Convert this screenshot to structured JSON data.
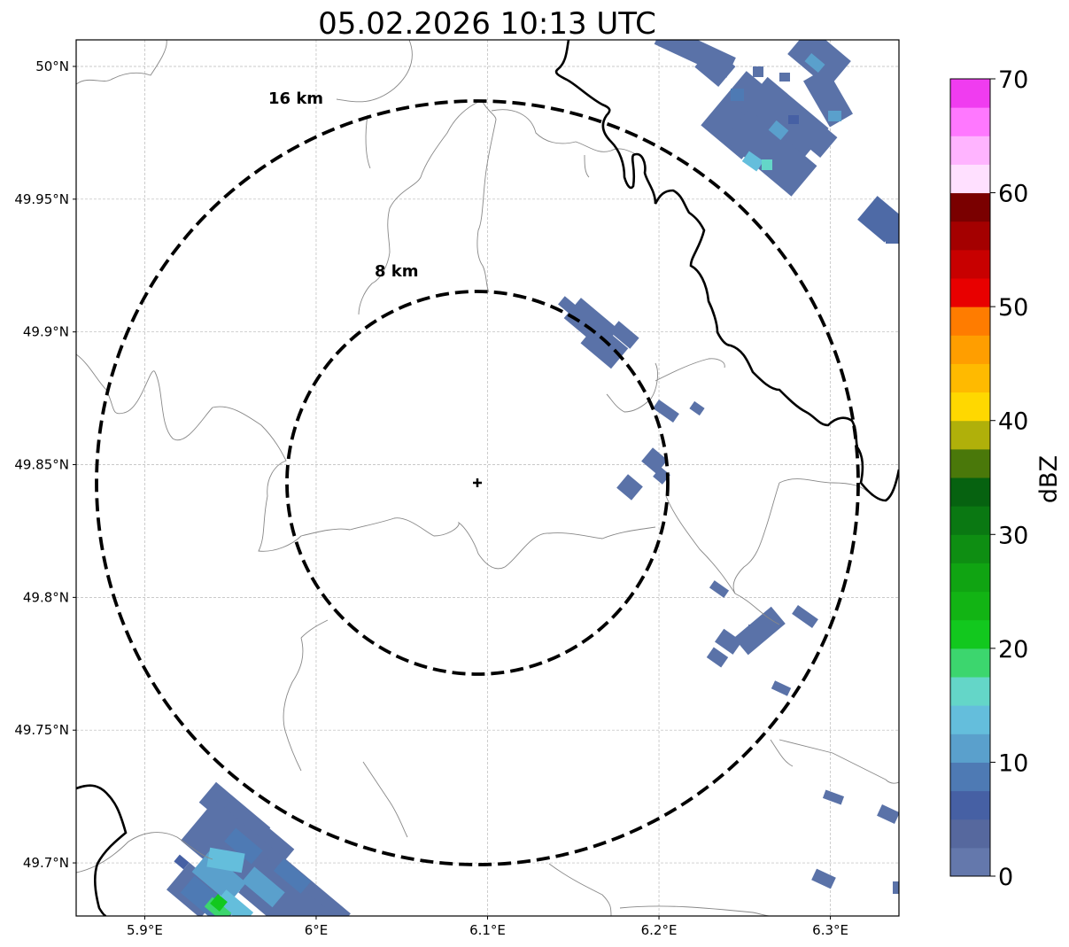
{
  "title": "05.02.2026 10:13 UTC",
  "map": {
    "lon_range": [
      5.86,
      6.34
    ],
    "lat_range": [
      49.68,
      50.01
    ],
    "lon_ticks": [
      {
        "value": 5.9,
        "label": "5.9°E"
      },
      {
        "value": 6.0,
        "label": "6°E"
      },
      {
        "value": 6.1,
        "label": "6.1°E"
      },
      {
        "value": 6.2,
        "label": "6.2°E"
      },
      {
        "value": 6.3,
        "label": "6.3°E"
      }
    ],
    "lat_ticks": [
      {
        "value": 50.0,
        "label": "50°N"
      },
      {
        "value": 49.95,
        "label": "49.95°N"
      },
      {
        "value": 49.9,
        "label": "49.9°N"
      },
      {
        "value": 49.85,
        "label": "49.85°N"
      },
      {
        "value": 49.8,
        "label": "49.8°N"
      },
      {
        "value": 49.75,
        "label": "49.75°N"
      },
      {
        "value": 49.7,
        "label": "49.7°N"
      }
    ],
    "gridlines": true,
    "radar_site": {
      "lon": 6.095,
      "lat": 49.843
    },
    "rings": [
      {
        "radius_km": 8,
        "label": "8 km"
      },
      {
        "radius_km": 16,
        "label": "16 km"
      }
    ]
  },
  "colorbar": {
    "label": "dBZ",
    "min": 0,
    "max": 70,
    "step": 2.5,
    "ticks": [
      "0",
      "10",
      "20",
      "30",
      "40",
      "50",
      "60",
      "70"
    ],
    "colors": [
      "#6478ac",
      "#56689e",
      "#4660a4",
      "#4e7ab4",
      "#5aa0cc",
      "#64bedc",
      "#64d6c8",
      "#3cd66e",
      "#12c81e",
      "#12b414",
      "#10a412",
      "#0e8e12",
      "#0a7812",
      "#066210",
      "#4a780a",
      "#b0b00a",
      "#ffd800",
      "#ffba00",
      "#ff9e00",
      "#ff7c00",
      "#e80000",
      "#c80000",
      "#a40000",
      "#7a0000",
      "#ffe0ff",
      "#ffb4ff",
      "#ff78ff",
      "#f03cf0"
    ]
  },
  "echoes": [
    {
      "lon": 6.16,
      "lat": 49.895,
      "dbz": 2
    },
    {
      "lon": 6.19,
      "lat": 49.87,
      "dbz": 2
    },
    {
      "lon": 6.195,
      "lat": 49.85,
      "dbz": 3
    },
    {
      "lon": 6.185,
      "lat": 49.84,
      "dbz": 3
    },
    {
      "lon": 6.26,
      "lat": 49.97,
      "dbz": 8
    },
    {
      "lon": 6.32,
      "lat": 49.94,
      "dbz": 4
    },
    {
      "lon": 6.25,
      "lat": 49.785,
      "dbz": 2
    },
    {
      "lon": 6.285,
      "lat": 49.79,
      "dbz": 2
    },
    {
      "lon": 5.96,
      "lat": 49.7,
      "dbz": 12
    },
    {
      "lon": 6.3,
      "lat": 49.72,
      "dbz": 2
    }
  ]
}
